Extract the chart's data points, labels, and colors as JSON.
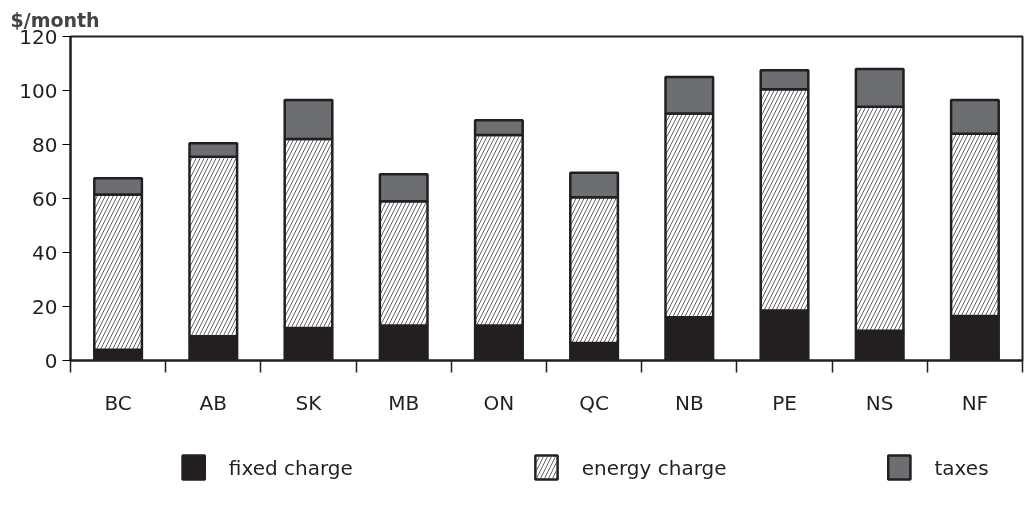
{
  "chart_data": {
    "type": "bar",
    "stacked": true,
    "ylabel": "$/month",
    "categories": [
      "BC",
      "AB",
      "SK",
      "MB",
      "ON",
      "QC",
      "NB",
      "PE",
      "NS",
      "NF"
    ],
    "series": [
      {
        "name": "fixed charge",
        "color": "#231f20",
        "values": [
          4,
          9,
          12,
          13,
          13,
          6.5,
          16,
          18.5,
          11,
          16.5
        ]
      },
      {
        "name": "energy charge",
        "color": "#ffffff",
        "values": [
          57.5,
          66.5,
          70,
          46,
          70.5,
          54,
          75.5,
          82,
          83,
          67.5
        ]
      },
      {
        "name": "taxes",
        "color": "#6d6e71",
        "values": [
          6,
          5,
          14.5,
          10,
          5.5,
          9,
          13.5,
          7,
          14,
          12.5
        ]
      }
    ],
    "ylim": [
      0,
      120
    ],
    "yticks": [
      0,
      20,
      40,
      60,
      80,
      100,
      120
    ],
    "grid": false,
    "legend": "bottom"
  }
}
